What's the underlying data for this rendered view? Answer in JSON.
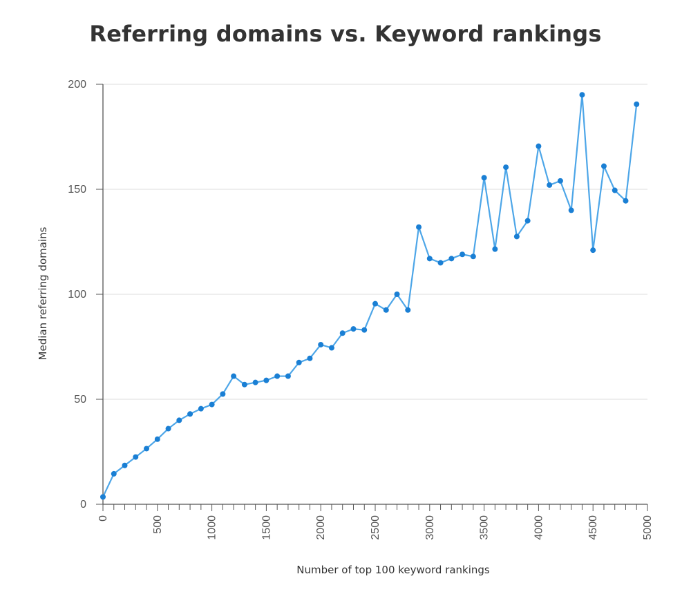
{
  "chart_data": {
    "type": "line",
    "title": "Referring domains vs. Keyword rankings",
    "xlabel": "Number of top 100 keyword rankings",
    "ylabel": "Median referring domains",
    "xlim": [
      0,
      5000
    ],
    "ylim": [
      0,
      200
    ],
    "x_ticks": [
      "0",
      "500",
      "1000",
      "1500",
      "2000",
      "2500",
      "3000",
      "3500",
      "4000",
      "4500",
      "5000"
    ],
    "y_ticks": [
      "0",
      "50",
      "100",
      "150",
      "200"
    ],
    "grid": "horizontal",
    "legend": "none",
    "line_color": "#4da6e8",
    "marker_color": "#1a7fd4",
    "x": [
      0,
      100,
      200,
      300,
      400,
      500,
      600,
      700,
      800,
      900,
      1000,
      1100,
      1200,
      1300,
      1400,
      1500,
      1600,
      1700,
      1800,
      1900,
      2000,
      2100,
      2200,
      2300,
      2400,
      2500,
      2600,
      2700,
      2800,
      2900,
      3000,
      3100,
      3200,
      3300,
      3400,
      3500,
      3600,
      3700,
      3800,
      3900,
      4000,
      4100,
      4200,
      4300,
      4400,
      4500,
      4600,
      4700,
      4800,
      4900
    ],
    "values": [
      3.5,
      14.5,
      18.5,
      22.5,
      26.5,
      31,
      36,
      40,
      43,
      45.5,
      47.5,
      52.5,
      61,
      57,
      58,
      59,
      61,
      61,
      67.5,
      69.5,
      76,
      74.5,
      81.5,
      83.5,
      83,
      95.5,
      92.5,
      100,
      92.5,
      132,
      117,
      115,
      117,
      119,
      118,
      155.5,
      121.5,
      160.5,
      127.5,
      135,
      170.5,
      152,
      154,
      140,
      195,
      121,
      161,
      149.5,
      144.5,
      190.5
    ]
  }
}
